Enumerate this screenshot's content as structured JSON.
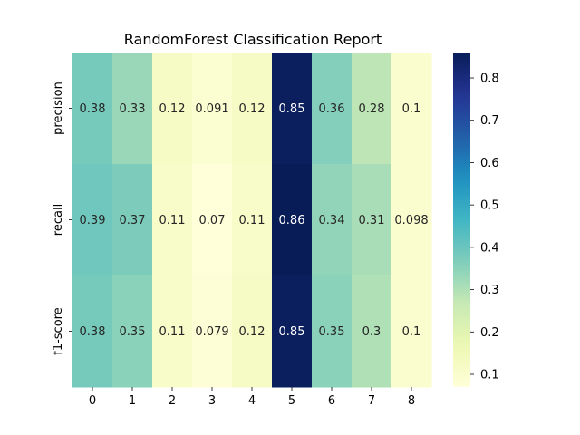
{
  "chart_data": {
    "type": "heatmap",
    "title": "RandomForest Classification Report",
    "xlabel": "",
    "ylabel": "",
    "rows": [
      "precision",
      "recall",
      "f1-score"
    ],
    "columns": [
      "0",
      "1",
      "2",
      "3",
      "4",
      "5",
      "6",
      "7",
      "8"
    ],
    "values": [
      [
        0.38,
        0.33,
        0.12,
        0.091,
        0.12,
        0.85,
        0.36,
        0.28,
        0.1
      ],
      [
        0.39,
        0.37,
        0.11,
        0.07,
        0.11,
        0.86,
        0.34,
        0.31,
        0.098
      ],
      [
        0.38,
        0.35,
        0.11,
        0.079,
        0.12,
        0.85,
        0.35,
        0.3,
        0.1
      ]
    ],
    "colormap": "YlGnBu",
    "vmin": 0.07,
    "vmax": 0.86,
    "colorbar_ticks": [
      "0.1",
      "0.2",
      "0.3",
      "0.4",
      "0.5",
      "0.6",
      "0.7",
      "0.8"
    ],
    "annotations": true,
    "grid": false
  }
}
